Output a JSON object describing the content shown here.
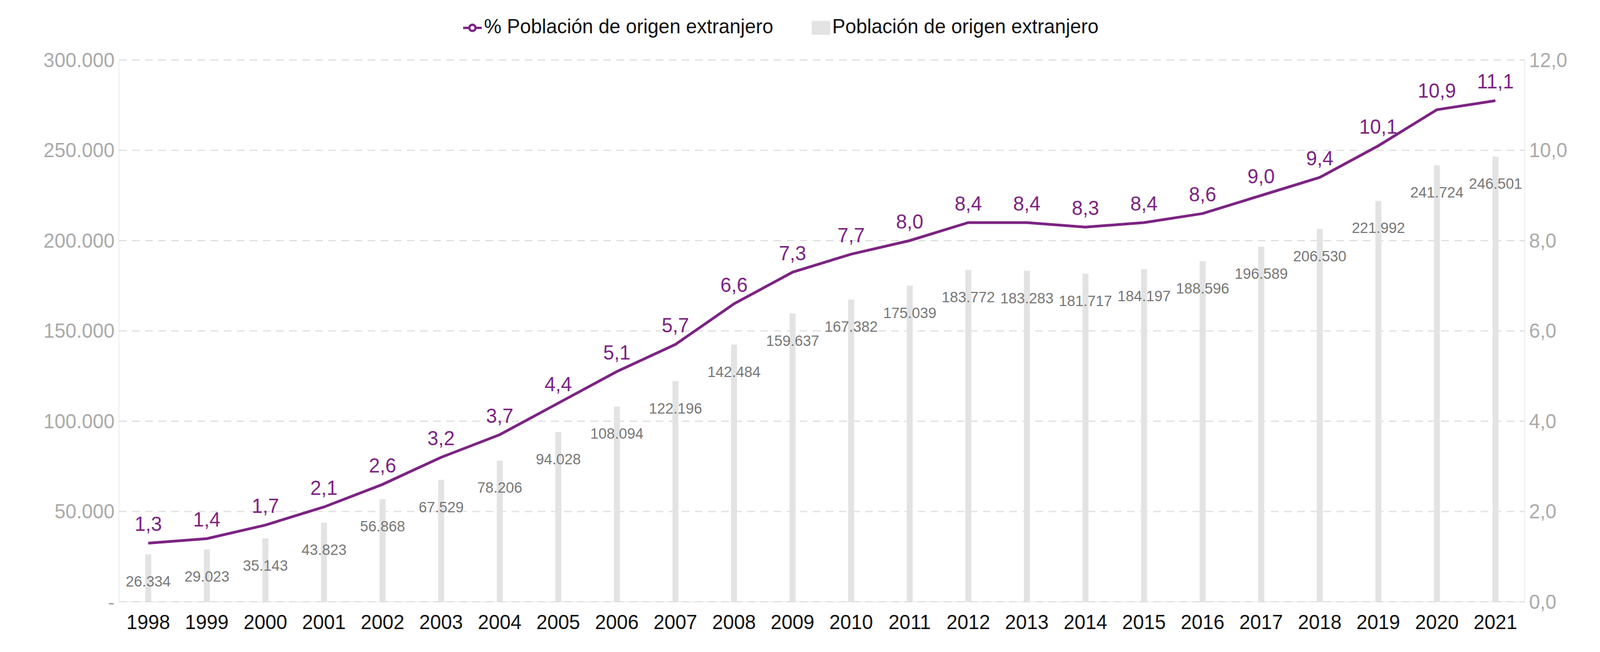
{
  "chart_data": {
    "type": "bar",
    "categories": [
      "1998",
      "1999",
      "2000",
      "2001",
      "2002",
      "2003",
      "2004",
      "2005",
      "2006",
      "2007",
      "2008",
      "2009",
      "2010",
      "2011",
      "2012",
      "2013",
      "2014",
      "2015",
      "2016",
      "2017",
      "2018",
      "2019",
      "2020",
      "2021"
    ],
    "series": [
      {
        "name": "Población de origen extranjero",
        "type": "bar",
        "color": "#e3e3e3",
        "values": [
          26334,
          29023,
          35143,
          43823,
          56868,
          67529,
          78206,
          94028,
          108094,
          122196,
          142484,
          159637,
          167382,
          175039,
          183772,
          183283,
          181717,
          184197,
          188596,
          196589,
          206530,
          221992,
          241724,
          246501
        ],
        "value_labels": [
          "26.334",
          "29.023",
          "35.143",
          "43.823",
          "56.868",
          "67.529",
          "78.206",
          "94.028",
          "108.094",
          "122.196",
          "142.484",
          "159.637",
          "167.382",
          "175.039",
          "183.772",
          "183.283",
          "181.717",
          "184.197",
          "188.596",
          "196.589",
          "206.530",
          "221.992",
          "241.724",
          "246.501"
        ]
      },
      {
        "name": "% Población de origen extranjero",
        "type": "line",
        "axis": "y2",
        "color": "#7b2382",
        "values": [
          1.3,
          1.4,
          1.7,
          2.1,
          2.6,
          3.2,
          3.7,
          4.4,
          5.1,
          5.7,
          6.6,
          7.3,
          7.7,
          8.0,
          8.4,
          8.4,
          8.3,
          8.4,
          8.6,
          9.0,
          9.4,
          10.1,
          10.9,
          11.1
        ],
        "value_labels": [
          "1,3",
          "1,4",
          "1,7",
          "2,1",
          "2,6",
          "3,2",
          "3,7",
          "4,4",
          "5,1",
          "5,7",
          "6,6",
          "7,3",
          "7,7",
          "8,0",
          "8,4",
          "8,4",
          "8,3",
          "8,4",
          "8,6",
          "9,0",
          "9,4",
          "10,1",
          "10,9",
          "11,1"
        ]
      }
    ],
    "ylim": [
      0,
      300000
    ],
    "yticks": [
      {
        "value": 0,
        "label": "-"
      },
      {
        "value": 50000,
        "label": "50.000"
      },
      {
        "value": 100000,
        "label": "100.000"
      },
      {
        "value": 150000,
        "label": "150.000"
      },
      {
        "value": 200000,
        "label": "200.000"
      },
      {
        "value": 250000,
        "label": "250.000"
      },
      {
        "value": 300000,
        "label": "300.000"
      }
    ],
    "y2lim": [
      0,
      12
    ],
    "y2ticks": [
      {
        "value": 0,
        "label": "0,0"
      },
      {
        "value": 2,
        "label": "2,0"
      },
      {
        "value": 4,
        "label": "4,0"
      },
      {
        "value": 6,
        "label": "6,0"
      },
      {
        "value": 8,
        "label": "8,0"
      },
      {
        "value": 10,
        "label": "10,0"
      },
      {
        "value": 12,
        "label": "12,0"
      }
    ],
    "grid": true,
    "legend": "top",
    "data_labels": true
  }
}
